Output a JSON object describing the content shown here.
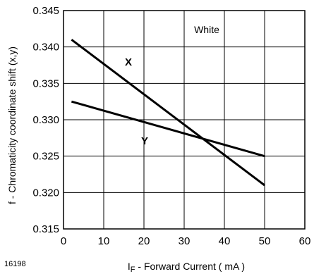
{
  "figure_id": "16198",
  "chart_data": {
    "type": "line",
    "title": "",
    "xlabel_main": "I",
    "xlabel_sub": "F",
    "xlabel_rest": " - Forward Current ( mA )",
    "ylabel": "f  -  Chromaticity coordinate shift (x,y)",
    "xlim": [
      0,
      60
    ],
    "ylim": [
      0.315,
      0.345
    ],
    "xticks": [
      0,
      10,
      20,
      30,
      40,
      50,
      60
    ],
    "xtick_labels": [
      "0",
      "10",
      "20",
      "30",
      "40",
      "50",
      "60"
    ],
    "yticks": [
      0.315,
      0.32,
      0.325,
      0.33,
      0.335,
      0.34,
      0.345
    ],
    "ytick_labels": [
      "0.315",
      "0.320",
      "0.325",
      "0.330",
      "0.335",
      "0.340",
      "0.345"
    ],
    "grid": true,
    "annotation": "White",
    "series": [
      {
        "name": "X",
        "x": [
          2,
          50
        ],
        "values": [
          0.341,
          0.321
        ]
      },
      {
        "name": "Y",
        "x": [
          2,
          50
        ],
        "values": [
          0.3325,
          0.325
        ]
      }
    ]
  }
}
